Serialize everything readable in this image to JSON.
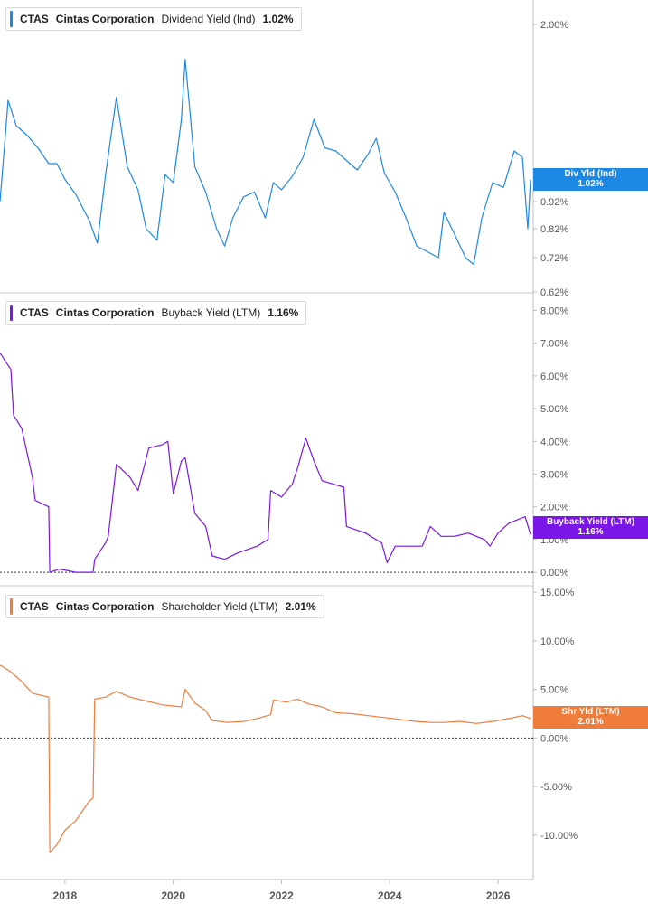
{
  "chart_data": [
    {
      "type": "line",
      "ticker": "CTAS",
      "company": "Cintas Corporation",
      "metric": "Dividend Yield (Ind)",
      "latest": "1.02%",
      "tag_label": "Div Yld (Ind)",
      "tag_value": "1.02%",
      "color": "#1e88e5",
      "ylim": [
        0.62,
        2.1
      ],
      "yticks": [
        "2.00%",
        "1.00%",
        "0.92%",
        "0.82%",
        "0.72%",
        "0.62%"
      ],
      "zero_line": false,
      "series": [
        {
          "values": [
            [
              2016.8,
              0.92
            ],
            [
              2016.95,
              1.52
            ],
            [
              2017.1,
              1.36
            ],
            [
              2017.3,
              1.3
            ],
            [
              2017.5,
              1.22
            ],
            [
              2017.7,
              1.12
            ],
            [
              2017.85,
              1.12
            ],
            [
              2018.0,
              1.02
            ],
            [
              2018.2,
              0.95
            ],
            [
              2018.45,
              0.85
            ],
            [
              2018.6,
              0.77
            ],
            [
              2018.75,
              1.05
            ],
            [
              2018.95,
              1.54
            ],
            [
              2019.15,
              1.1
            ],
            [
              2019.35,
              0.97
            ],
            [
              2019.5,
              0.82
            ],
            [
              2019.7,
              0.78
            ],
            [
              2019.85,
              1.05
            ],
            [
              2020.0,
              1.0
            ],
            [
              2020.15,
              1.4
            ],
            [
              2020.22,
              1.78
            ],
            [
              2020.4,
              1.1
            ],
            [
              2020.6,
              0.96
            ],
            [
              2020.8,
              0.82
            ],
            [
              2020.95,
              0.76
            ],
            [
              2021.1,
              0.86
            ],
            [
              2021.3,
              0.94
            ],
            [
              2021.5,
              0.96
            ],
            [
              2021.7,
              0.86
            ],
            [
              2021.85,
              1.0
            ],
            [
              2022.0,
              0.97
            ],
            [
              2022.2,
              1.04
            ],
            [
              2022.4,
              1.16
            ],
            [
              2022.6,
              1.4
            ],
            [
              2022.8,
              1.22
            ],
            [
              2023.0,
              1.2
            ],
            [
              2023.2,
              1.14
            ],
            [
              2023.4,
              1.08
            ],
            [
              2023.6,
              1.18
            ],
            [
              2023.75,
              1.28
            ],
            [
              2023.9,
              1.06
            ],
            [
              2024.1,
              0.96
            ],
            [
              2024.3,
              0.86
            ],
            [
              2024.5,
              0.76
            ],
            [
              2024.7,
              0.74
            ],
            [
              2024.9,
              0.72
            ],
            [
              2025.0,
              0.88
            ],
            [
              2025.2,
              0.8
            ],
            [
              2025.4,
              0.72
            ],
            [
              2025.55,
              0.7
            ],
            [
              2025.7,
              0.86
            ],
            [
              2025.9,
              1.0
            ],
            [
              2026.1,
              0.98
            ],
            [
              2026.3,
              1.2
            ],
            [
              2026.45,
              1.16
            ],
            [
              2026.55,
              0.82
            ],
            [
              2026.6,
              1.02
            ]
          ]
        }
      ]
    },
    {
      "type": "line",
      "ticker": "CTAS",
      "company": "Cintas Corporation",
      "metric": "Buyback Yield (LTM)",
      "latest": "1.16%",
      "tag_label": "Buyback Yield (LTM)",
      "tag_value": "1.16%",
      "color": "#7b16e8",
      "ylim": [
        -0.3,
        8.4
      ],
      "yticks": [
        "8.00%",
        "7.00%",
        "6.00%",
        "5.00%",
        "4.00%",
        "3.00%",
        "2.00%",
        "1.00%",
        "0.00%"
      ],
      "zero_line": true,
      "series": [
        {
          "values": [
            [
              2016.8,
              6.7
            ],
            [
              2017.0,
              6.2
            ],
            [
              2017.05,
              4.8
            ],
            [
              2017.2,
              4.4
            ],
            [
              2017.4,
              2.9
            ],
            [
              2017.45,
              2.2
            ],
            [
              2017.7,
              2.0
            ],
            [
              2017.72,
              0.0
            ],
            [
              2017.9,
              0.1
            ],
            [
              2018.2,
              0.0
            ],
            [
              2018.52,
              0.0
            ],
            [
              2018.55,
              0.4
            ],
            [
              2018.75,
              0.9
            ],
            [
              2018.8,
              1.1
            ],
            [
              2018.95,
              3.3
            ],
            [
              2019.2,
              2.9
            ],
            [
              2019.35,
              2.5
            ],
            [
              2019.55,
              3.8
            ],
            [
              2019.8,
              3.9
            ],
            [
              2019.9,
              4.0
            ],
            [
              2020.0,
              2.4
            ],
            [
              2020.15,
              3.4
            ],
            [
              2020.22,
              3.5
            ],
            [
              2020.4,
              1.8
            ],
            [
              2020.6,
              1.4
            ],
            [
              2020.72,
              0.5
            ],
            [
              2020.95,
              0.4
            ],
            [
              2021.2,
              0.6
            ],
            [
              2021.55,
              0.8
            ],
            [
              2021.75,
              1.0
            ],
            [
              2021.8,
              2.5
            ],
            [
              2022.0,
              2.3
            ],
            [
              2022.2,
              2.7
            ],
            [
              2022.3,
              3.2
            ],
            [
              2022.45,
              4.1
            ],
            [
              2022.6,
              3.4
            ],
            [
              2022.75,
              2.8
            ],
            [
              2022.95,
              2.7
            ],
            [
              2023.15,
              2.6
            ],
            [
              2023.2,
              1.4
            ],
            [
              2023.55,
              1.2
            ],
            [
              2023.85,
              0.9
            ],
            [
              2023.95,
              0.3
            ],
            [
              2024.1,
              0.8
            ],
            [
              2024.4,
              0.8
            ],
            [
              2024.6,
              0.8
            ],
            [
              2024.75,
              1.4
            ],
            [
              2024.95,
              1.1
            ],
            [
              2025.2,
              1.1
            ],
            [
              2025.45,
              1.2
            ],
            [
              2025.75,
              1.0
            ],
            [
              2025.85,
              0.8
            ],
            [
              2026.0,
              1.2
            ],
            [
              2026.2,
              1.5
            ],
            [
              2026.35,
              1.6
            ],
            [
              2026.5,
              1.7
            ],
            [
              2026.6,
              1.16
            ]
          ]
        }
      ]
    },
    {
      "type": "line",
      "ticker": "CTAS",
      "company": "Cintas Corporation",
      "metric": "Shareholder Yield (LTM)",
      "latest": "2.01%",
      "tag_label": "Shr Yld (LTM)",
      "tag_value": "2.01%",
      "color": "#f07c3c",
      "ylim": [
        -14.2,
        15.2
      ],
      "yticks": [
        "15.00%",
        "10.00%",
        "5.00%",
        "0.00%",
        "-5.00%",
        "-10.00%"
      ],
      "zero_line": true,
      "series": [
        {
          "values": [
            [
              2016.8,
              7.5
            ],
            [
              2017.0,
              6.8
            ],
            [
              2017.2,
              5.8
            ],
            [
              2017.4,
              4.6
            ],
            [
              2017.7,
              4.2
            ],
            [
              2017.72,
              -11.8
            ],
            [
              2017.85,
              -11.0
            ],
            [
              2018.0,
              -9.5
            ],
            [
              2018.2,
              -8.5
            ],
            [
              2018.45,
              -6.5
            ],
            [
              2018.52,
              -6.2
            ],
            [
              2018.55,
              4.0
            ],
            [
              2018.75,
              4.2
            ],
            [
              2018.95,
              4.8
            ],
            [
              2019.2,
              4.2
            ],
            [
              2019.5,
              3.8
            ],
            [
              2019.8,
              3.4
            ],
            [
              2020.15,
              3.2
            ],
            [
              2020.22,
              5.0
            ],
            [
              2020.4,
              3.6
            ],
            [
              2020.6,
              2.8
            ],
            [
              2020.72,
              1.8
            ],
            [
              2021.0,
              1.6
            ],
            [
              2021.3,
              1.7
            ],
            [
              2021.55,
              2.0
            ],
            [
              2021.8,
              2.4
            ],
            [
              2021.85,
              3.9
            ],
            [
              2022.1,
              3.7
            ],
            [
              2022.3,
              4.0
            ],
            [
              2022.5,
              3.5
            ],
            [
              2022.75,
              3.2
            ],
            [
              2023.0,
              2.6
            ],
            [
              2023.3,
              2.5
            ],
            [
              2023.6,
              2.3
            ],
            [
              2023.9,
              2.1
            ],
            [
              2024.2,
              1.9
            ],
            [
              2024.5,
              1.7
            ],
            [
              2024.75,
              1.6
            ],
            [
              2025.0,
              1.6
            ],
            [
              2025.3,
              1.7
            ],
            [
              2025.6,
              1.5
            ],
            [
              2025.9,
              1.7
            ],
            [
              2026.2,
              2.0
            ],
            [
              2026.45,
              2.3
            ],
            [
              2026.6,
              2.01
            ]
          ]
        }
      ]
    }
  ],
  "x_axis": {
    "xlim": [
      2016.8,
      2026.65
    ],
    "ticks": [
      2018,
      2020,
      2022,
      2024,
      2026
    ],
    "tick_labels": [
      "2018",
      "2020",
      "2022",
      "2024",
      "2026"
    ]
  },
  "grid": false
}
